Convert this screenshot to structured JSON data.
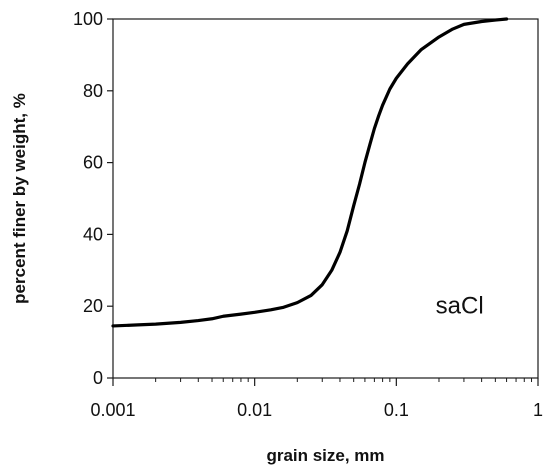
{
  "chart_data": {
    "type": "line",
    "title": "",
    "xlabel": "grain size, mm",
    "ylabel": "percent finer by weight, %",
    "xscale": "log",
    "xlim": [
      0.001,
      1
    ],
    "ylim": [
      0,
      100
    ],
    "grid": false,
    "legend": "none",
    "line_color": "#000000",
    "x_ticks": [
      {
        "value": 0.001,
        "label": "0.001"
      },
      {
        "value": 0.01,
        "label": "0.01"
      },
      {
        "value": 0.1,
        "label": "0.1"
      },
      {
        "value": 1,
        "label": "1"
      }
    ],
    "y_ticks": [
      {
        "value": 0,
        "label": "0"
      },
      {
        "value": 20,
        "label": "20"
      },
      {
        "value": 40,
        "label": "40"
      },
      {
        "value": 60,
        "label": "60"
      },
      {
        "value": 80,
        "label": "80"
      },
      {
        "value": 100,
        "label": "100"
      }
    ],
    "annotations": [
      {
        "text": "saCl",
        "x": 0.28,
        "y": 18
      }
    ],
    "series": [
      {
        "x": [
          0.001,
          0.0015,
          0.002,
          0.003,
          0.004,
          0.005,
          0.006,
          0.008,
          0.01,
          0.013,
          0.016,
          0.02,
          0.025,
          0.03,
          0.035,
          0.04,
          0.045,
          0.05,
          0.055,
          0.06,
          0.065,
          0.07,
          0.075,
          0.08,
          0.09,
          0.1,
          0.12,
          0.15,
          0.2,
          0.25,
          0.3,
          0.4,
          0.5,
          0.6
        ],
        "y": [
          14.5,
          14.8,
          15.0,
          15.5,
          16.0,
          16.5,
          17.2,
          17.8,
          18.3,
          19.0,
          19.7,
          21.0,
          23.0,
          26.0,
          30.0,
          35.0,
          41.0,
          48.0,
          54.0,
          60.0,
          65.0,
          69.5,
          73.0,
          76.0,
          80.5,
          83.5,
          87.5,
          91.5,
          95.0,
          97.2,
          98.5,
          99.3,
          99.7,
          100.0
        ]
      }
    ]
  }
}
